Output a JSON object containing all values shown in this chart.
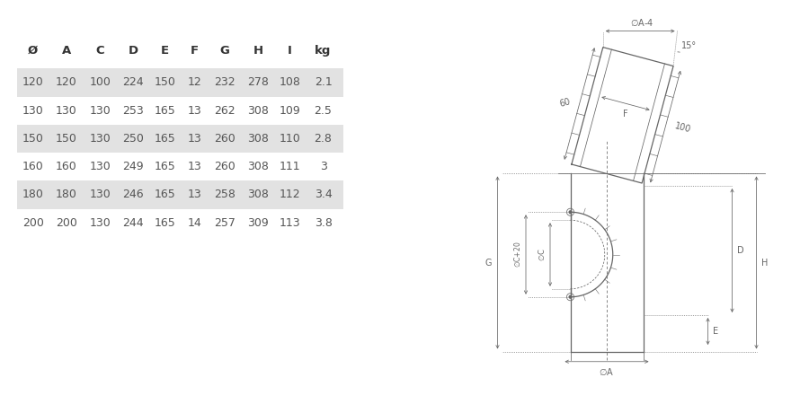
{
  "table_headers": [
    "Ø",
    "A",
    "C",
    "D",
    "E",
    "F",
    "G",
    "H",
    "I",
    "kg"
  ],
  "table_rows": [
    [
      120,
      120,
      100,
      224,
      150,
      12,
      232,
      278,
      108,
      2.1
    ],
    [
      130,
      130,
      130,
      253,
      165,
      13,
      262,
      308,
      109,
      2.5
    ],
    [
      150,
      150,
      130,
      250,
      165,
      13,
      260,
      308,
      110,
      2.8
    ],
    [
      160,
      160,
      130,
      249,
      165,
      13,
      260,
      308,
      111,
      3
    ],
    [
      180,
      180,
      130,
      246,
      165,
      13,
      258,
      308,
      112,
      3.4
    ],
    [
      200,
      200,
      130,
      244,
      165,
      14,
      257,
      309,
      113,
      3.8
    ]
  ],
  "shaded_rows": [
    0,
    2,
    4
  ],
  "row_bg_color": "#e2e2e2",
  "text_color": "#555555",
  "header_color": "#333333",
  "bg_color": "#ffffff",
  "lc": "#666666"
}
